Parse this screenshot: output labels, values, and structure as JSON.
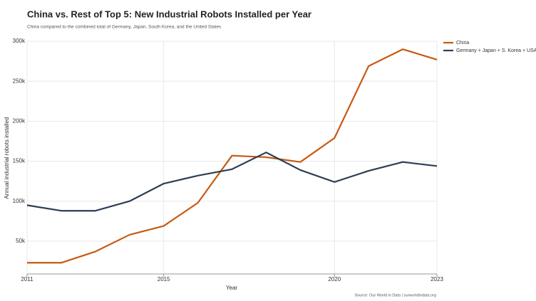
{
  "chart_data": {
    "type": "line",
    "title": "China vs. Rest of Top 5: New Industrial Robots Installed per Year",
    "subtitle": "China compared to the combined total of Germany, Japan, South Korea, and the United States",
    "y_label": "Annual industrial robots installed",
    "x_label": "Year",
    "source": "Source: Our World in Data  |  ourworldindata.org",
    "x": [
      2011,
      2012,
      2013,
      2014,
      2015,
      2016,
      2017,
      2018,
      2019,
      2020,
      2021,
      2022,
      2023
    ],
    "series": [
      {
        "name": "China",
        "color": "#c65a11",
        "values": [
          23000,
          23000,
          37000,
          58000,
          69000,
          98000,
          157000,
          155000,
          149000,
          179000,
          269000,
          290000,
          277000
        ]
      },
      {
        "name": "Germany + Japan + S. Korea + USA",
        "color": "#2d3e55",
        "values": [
          95000,
          88000,
          88000,
          100000,
          122000,
          132000,
          140000,
          161000,
          139000,
          124000,
          138000,
          149000,
          144000
        ]
      }
    ],
    "xlim": [
      2011,
      2023
    ],
    "xticks": [
      2011,
      2015,
      2020,
      2023
    ],
    "ylim": [
      9000,
      300000
    ],
    "yticks": [
      {
        "value": 50000,
        "label": "50k"
      },
      {
        "value": 100000,
        "label": "100k"
      },
      {
        "value": 150000,
        "label": "150k"
      },
      {
        "value": 200000,
        "label": "200k"
      },
      {
        "value": 250000,
        "label": "250k"
      },
      {
        "value": 300000,
        "label": "300k"
      }
    ],
    "grid": true
  }
}
